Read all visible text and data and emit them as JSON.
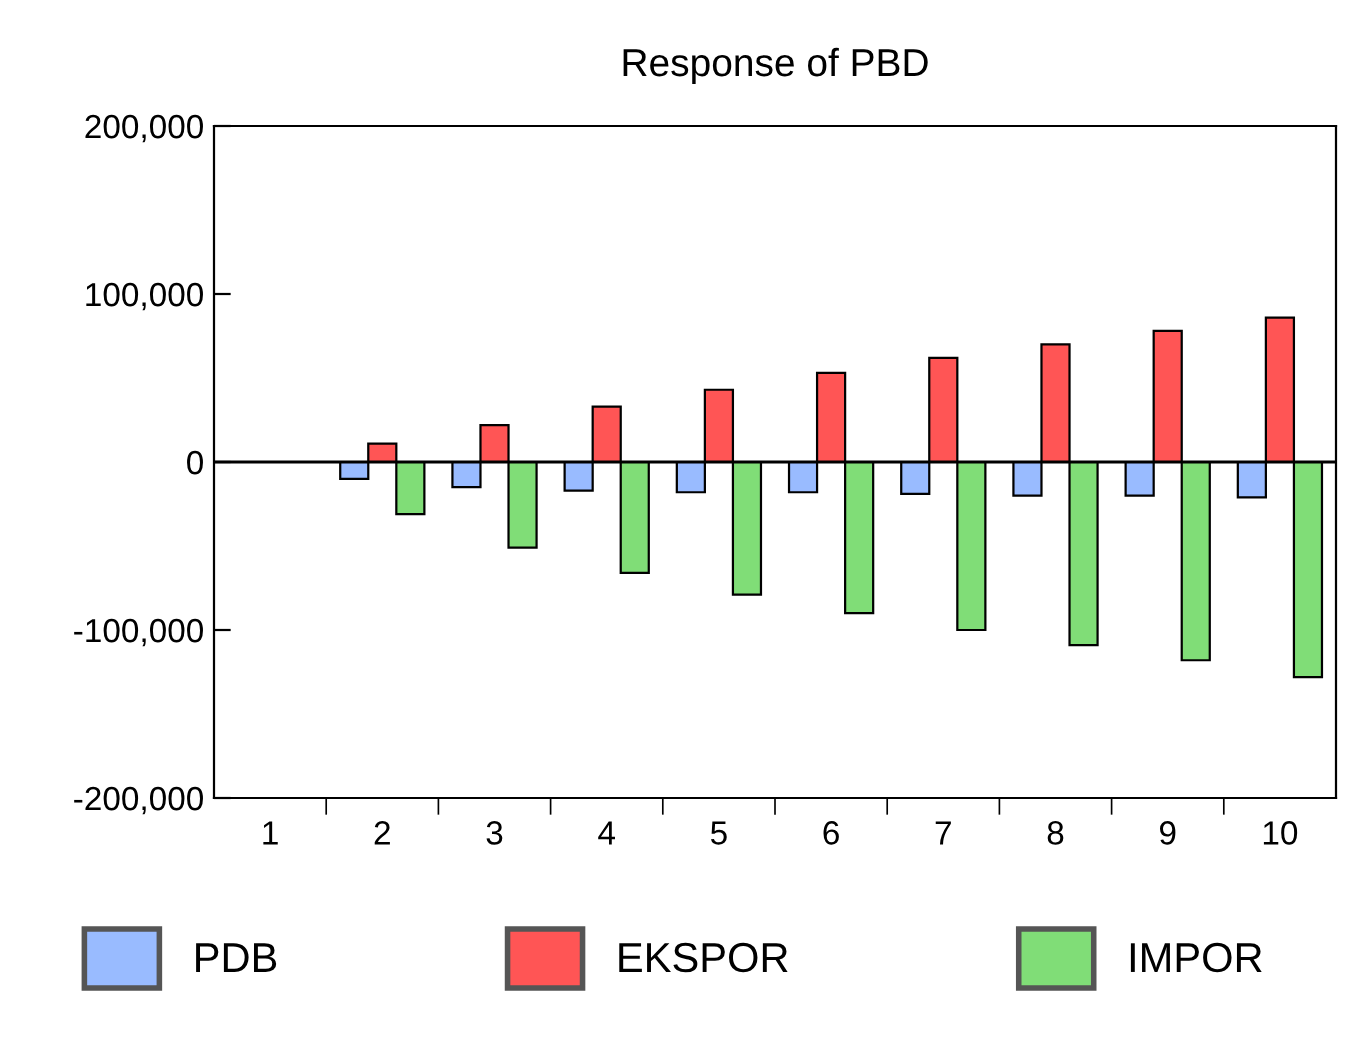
{
  "chart_data": {
    "type": "bar",
    "title": "Response of PBD",
    "categories": [
      "1",
      "2",
      "3",
      "4",
      "5",
      "6",
      "7",
      "8",
      "9",
      "10"
    ],
    "series": [
      {
        "name": "PDB",
        "color": "#99bbff",
        "values": [
          null,
          -10000,
          -15000,
          -17000,
          -18000,
          -18000,
          -19000,
          -20000,
          -20000,
          -21000
        ]
      },
      {
        "name": "EKSPOR",
        "color": "#ff5555",
        "values": [
          null,
          11000,
          22000,
          33000,
          43000,
          53000,
          62000,
          70000,
          78000,
          86000
        ]
      },
      {
        "name": "IMPOR",
        "color": "#80dd77",
        "values": [
          null,
          -31000,
          -51000,
          -66000,
          -79000,
          -90000,
          -100000,
          -109000,
          -118000,
          -128000
        ]
      }
    ],
    "ylim": [
      -200000,
      200000
    ],
    "yticks": [
      {
        "value": -200000,
        "label": "-200,000"
      },
      {
        "value": -100000,
        "label": "-100,000"
      },
      0,
      {
        "value": 100000,
        "label": "100,000"
      },
      {
        "value": 200000,
        "label": "200,000"
      }
    ],
    "ref_lines": [
      {
        "axis": "y",
        "value": 0,
        "color": "#000000"
      }
    ],
    "grid": false,
    "legend": "bottom"
  }
}
